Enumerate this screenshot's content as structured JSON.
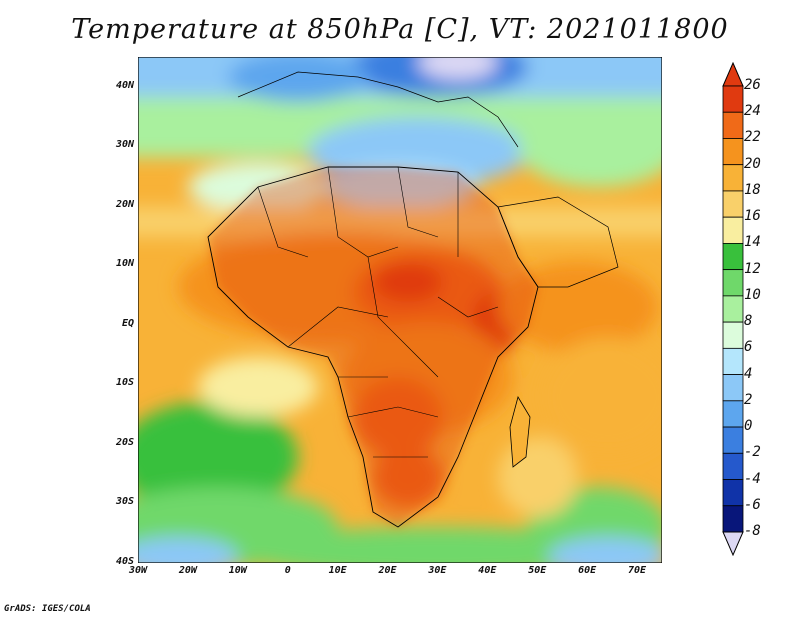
{
  "title": "Temperature at 850hPa [C], VT: 2021011800",
  "credit": "GrADS: IGES/COLA",
  "map": {
    "lat_labels": [
      "40N",
      "30N",
      "20N",
      "10N",
      "EQ",
      "10S",
      "20S",
      "30S",
      "40S"
    ],
    "lon_labels": [
      "30W",
      "20W",
      "10W",
      "0",
      "10E",
      "20E",
      "30E",
      "40E",
      "50E",
      "60E",
      "70E"
    ],
    "lat_values": [
      40,
      30,
      20,
      10,
      0,
      -10,
      -20,
      -30,
      -40
    ],
    "lon_values": [
      -30,
      -20,
      -10,
      0,
      10,
      20,
      30,
      40,
      50,
      60,
      70
    ],
    "extent": {
      "lon_min": -30,
      "lon_max": 75,
      "lat_min": -40,
      "lat_max": 45
    }
  },
  "colorbar": {
    "labels": [
      "26",
      "24",
      "22",
      "20",
      "18",
      "16",
      "14",
      "12",
      "10",
      "8",
      "6",
      "4",
      "2",
      "0",
      "-2",
      "-4",
      "-6",
      "-8"
    ],
    "colors": [
      "#8b0a0a",
      "#e03a10",
      "#f06a18",
      "#f5931e",
      "#f8b237",
      "#f9d06a",
      "#f9eea0",
      "#39c03c",
      "#6fd86a",
      "#a9f09e",
      "#dcfcdc",
      "#b4e6fc",
      "#8cc8f7",
      "#5da6ee",
      "#3b7fe0",
      "#2559cc",
      "#1033a8",
      "#08167a",
      "#dcd8f4"
    ]
  },
  "colors": {
    "ocean_cool": "#a9f09e",
    "land_hot": "#f06a18",
    "border": "#000000"
  }
}
